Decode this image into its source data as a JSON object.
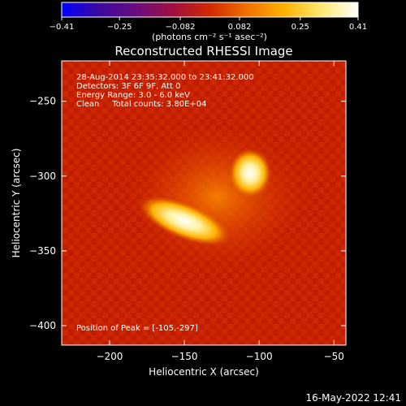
{
  "chart_data": {
    "type": "heatmap",
    "title": "Reconstructed RHESSI Image",
    "xlabel": "Heliocentric X (arcsec)",
    "ylabel": "Heliocentric Y (arcsec)",
    "xlim": [
      -232,
      -42
    ],
    "ylim": [
      -413,
      -223
    ],
    "x_ticks": [
      -200,
      -150,
      -100,
      -50
    ],
    "x_tick_labels": [
      "−200",
      "−150",
      "−100",
      "−50"
    ],
    "y_ticks": [
      -250,
      -300,
      -350,
      -400
    ],
    "y_tick_labels": [
      "−250",
      "−300",
      "−350",
      "−400"
    ],
    "colorbar": {
      "range": [
        -0.41,
        0.41
      ],
      "ticks": [
        -0.41,
        -0.25,
        -0.082,
        0.082,
        0.25,
        0.41
      ],
      "tick_labels": [
        "−0.41",
        "−0.25",
        "−0.082",
        "0.082",
        "0.25",
        "0.41"
      ],
      "colors": [
        "#0000ff",
        "#3a0aa0",
        "#6a0c80",
        "#a01040",
        "#d22800",
        "#f07000",
        "#ffb000",
        "#ffe870",
        "#ffffff"
      ]
    },
    "sources": [
      {
        "x": -106,
        "y": -298,
        "peak": 0.41
      },
      {
        "x": -150,
        "y": -330,
        "peak": 0.39
      }
    ],
    "annotations": [
      "28-Aug-2014 23:35:32.000 to 23:41:32.000",
      "Detectors: 3F 6F 9F, Att 0",
      "Energy Range: 3.0 - 6.0 keV",
      "Clean     Total counts: 3.80E+04",
      "Position of Peak = [-105,-297]"
    ]
  },
  "colorbar_unit_label": "(photons cm⁻² s⁻¹ asec⁻²)",
  "footer_timestamp": "16-May-2022 12:41"
}
